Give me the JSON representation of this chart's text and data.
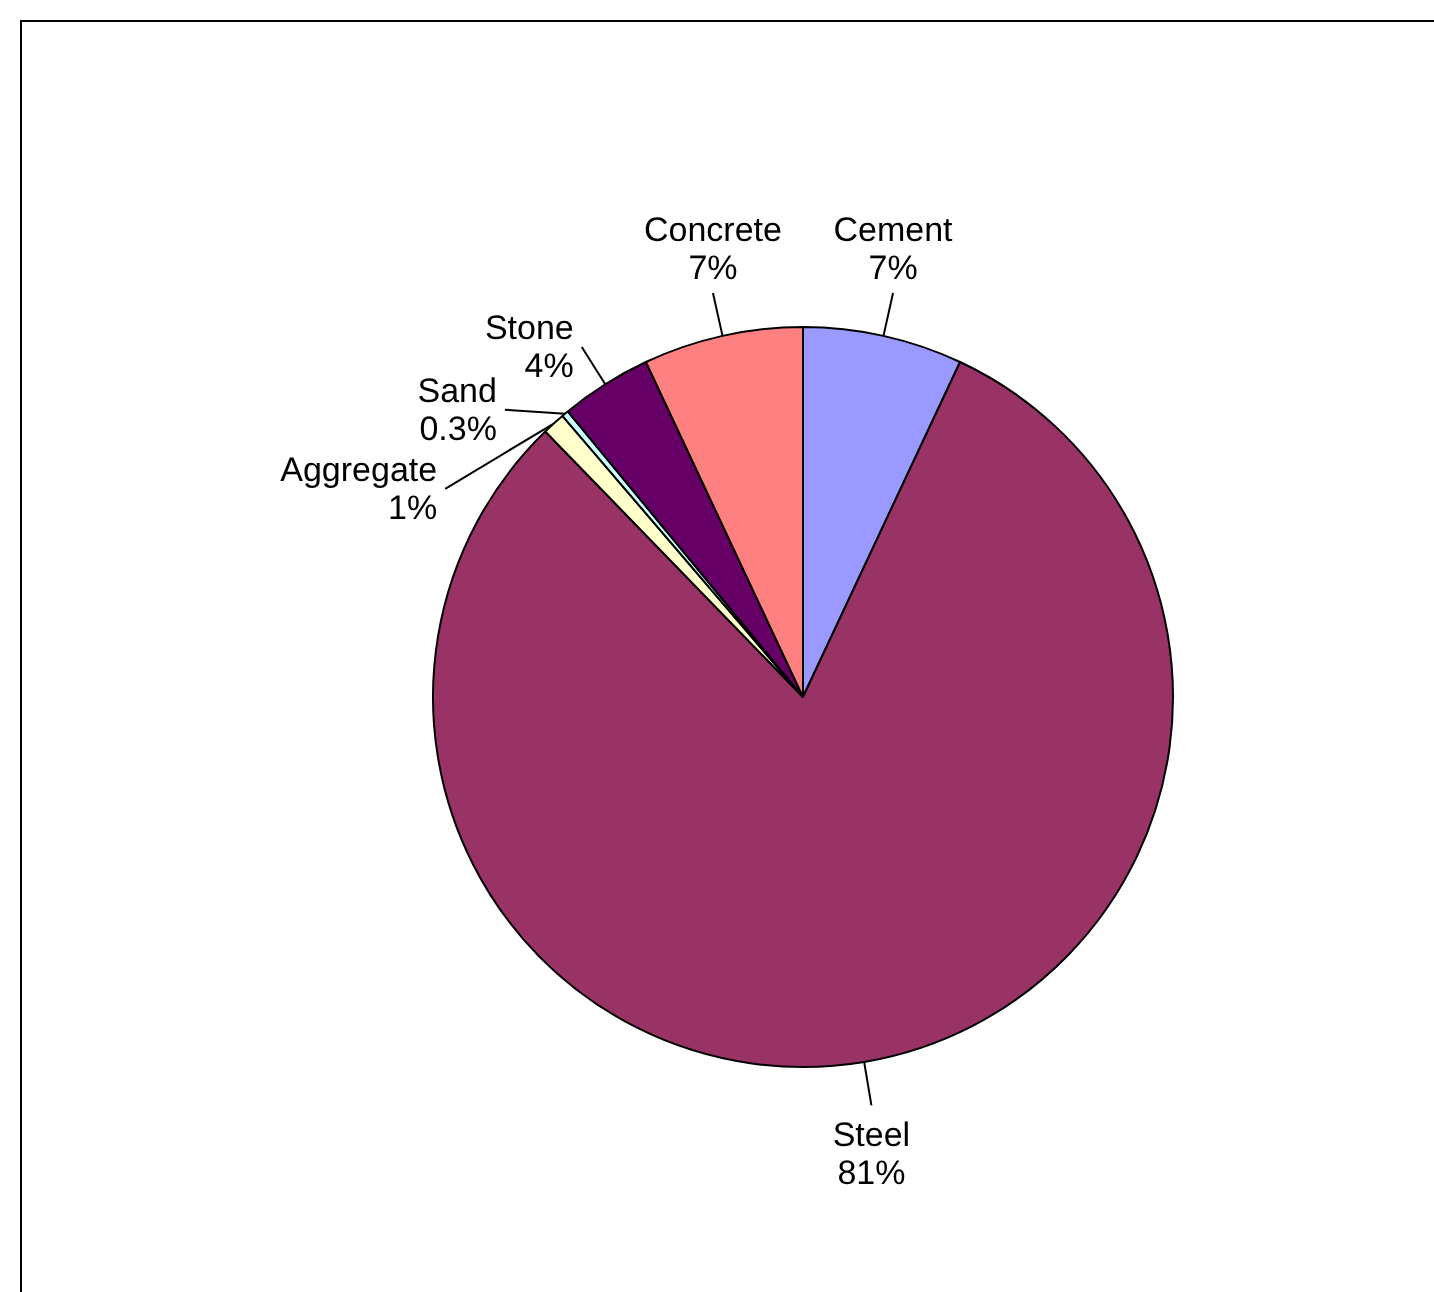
{
  "chart_data": {
    "type": "pie",
    "categories": [
      "Cement",
      "Steel",
      "Aggregate",
      "Sand",
      "Stone",
      "Concrete"
    ],
    "values": [
      7,
      81,
      1,
      0.3,
      4,
      7
    ],
    "value_labels": [
      "7%",
      "81%",
      "1%",
      "0.3%",
      "4%",
      "7%"
    ],
    "colors": [
      "#9999ff",
      "#993366",
      "#ffffcc",
      "#ccffff",
      "#660066",
      "#ff8080"
    ]
  }
}
